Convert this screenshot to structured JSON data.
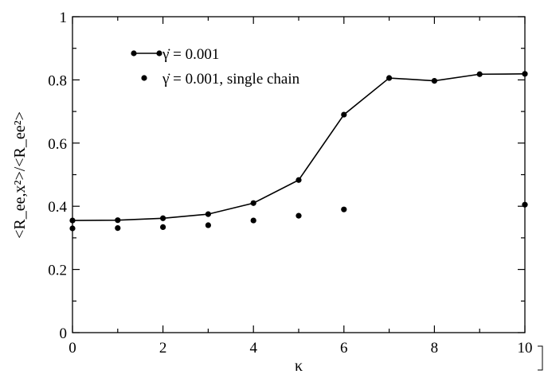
{
  "chart_data": {
    "type": "line",
    "xlabel": "κ",
    "ylabel": "<R_ee,x²>/<R_ee²>",
    "xlim": [
      0,
      10
    ],
    "ylim": [
      0,
      1
    ],
    "x_ticks": [
      "0",
      "2",
      "4",
      "6",
      "8",
      "10"
    ],
    "y_ticks": [
      "0",
      "0.2",
      "0.4",
      "0.6",
      "0.8",
      "1"
    ],
    "grid": false,
    "legend_position": "top-left",
    "series": [
      {
        "name": "γ̇ = 0.001",
        "style": "line-with-markers",
        "x": [
          0,
          1,
          2,
          3,
          4,
          5,
          6,
          7,
          8,
          9,
          10
        ],
        "y": [
          0.355,
          0.356,
          0.362,
          0.375,
          0.41,
          0.483,
          0.69,
          0.806,
          0.797,
          0.818,
          0.819
        ]
      },
      {
        "name": "γ̇ = 0.001, single chain",
        "style": "markers",
        "x": [
          0,
          1,
          2,
          3,
          4,
          5,
          6,
          10
        ],
        "y": [
          0.33,
          0.331,
          0.334,
          0.34,
          0.355,
          0.37,
          0.39,
          0.405
        ]
      }
    ],
    "colors": {
      "line": "#000000",
      "marker": "#000000"
    }
  }
}
